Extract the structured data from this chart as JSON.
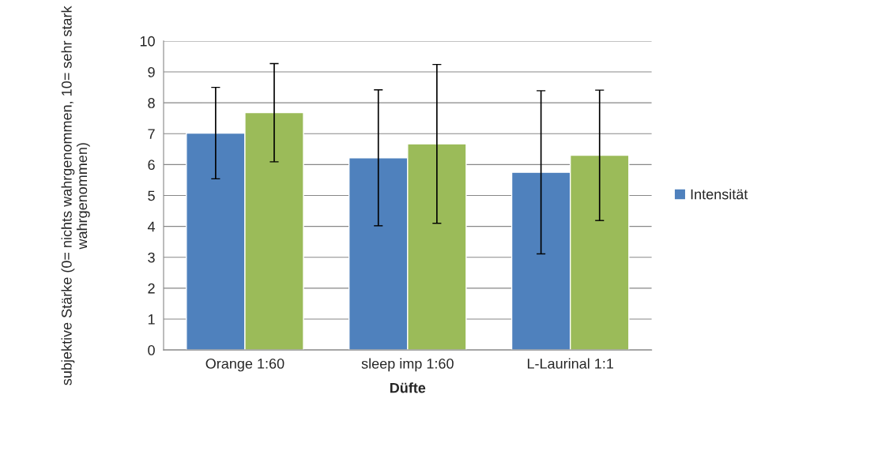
{
  "chart_data": {
    "type": "bar",
    "categories": [
      "Orange 1:60",
      "sleep imp 1:60",
      "L-Laurinal 1:1"
    ],
    "xlabel": "Düfte",
    "ylabel": "subjektive Stärke (0= nichts wahrgenommen, 10= sehr stark wahrgenommen)",
    "series": [
      {
        "name": "Intensität",
        "color": "#4f81bd",
        "values": [
          7.02,
          6.22,
          5.75
        ],
        "errors": [
          1.48,
          2.2,
          2.64
        ]
      },
      {
        "color": "#9bbb59",
        "values": [
          7.68,
          6.67,
          6.3
        ],
        "errors": [
          1.59,
          2.57,
          2.11
        ]
      }
    ],
    "ylim": [
      0,
      10
    ],
    "yticks": [
      0,
      1,
      2,
      3,
      4,
      5,
      6,
      7,
      8,
      9,
      10
    ],
    "grid": "y",
    "legend": "right"
  }
}
